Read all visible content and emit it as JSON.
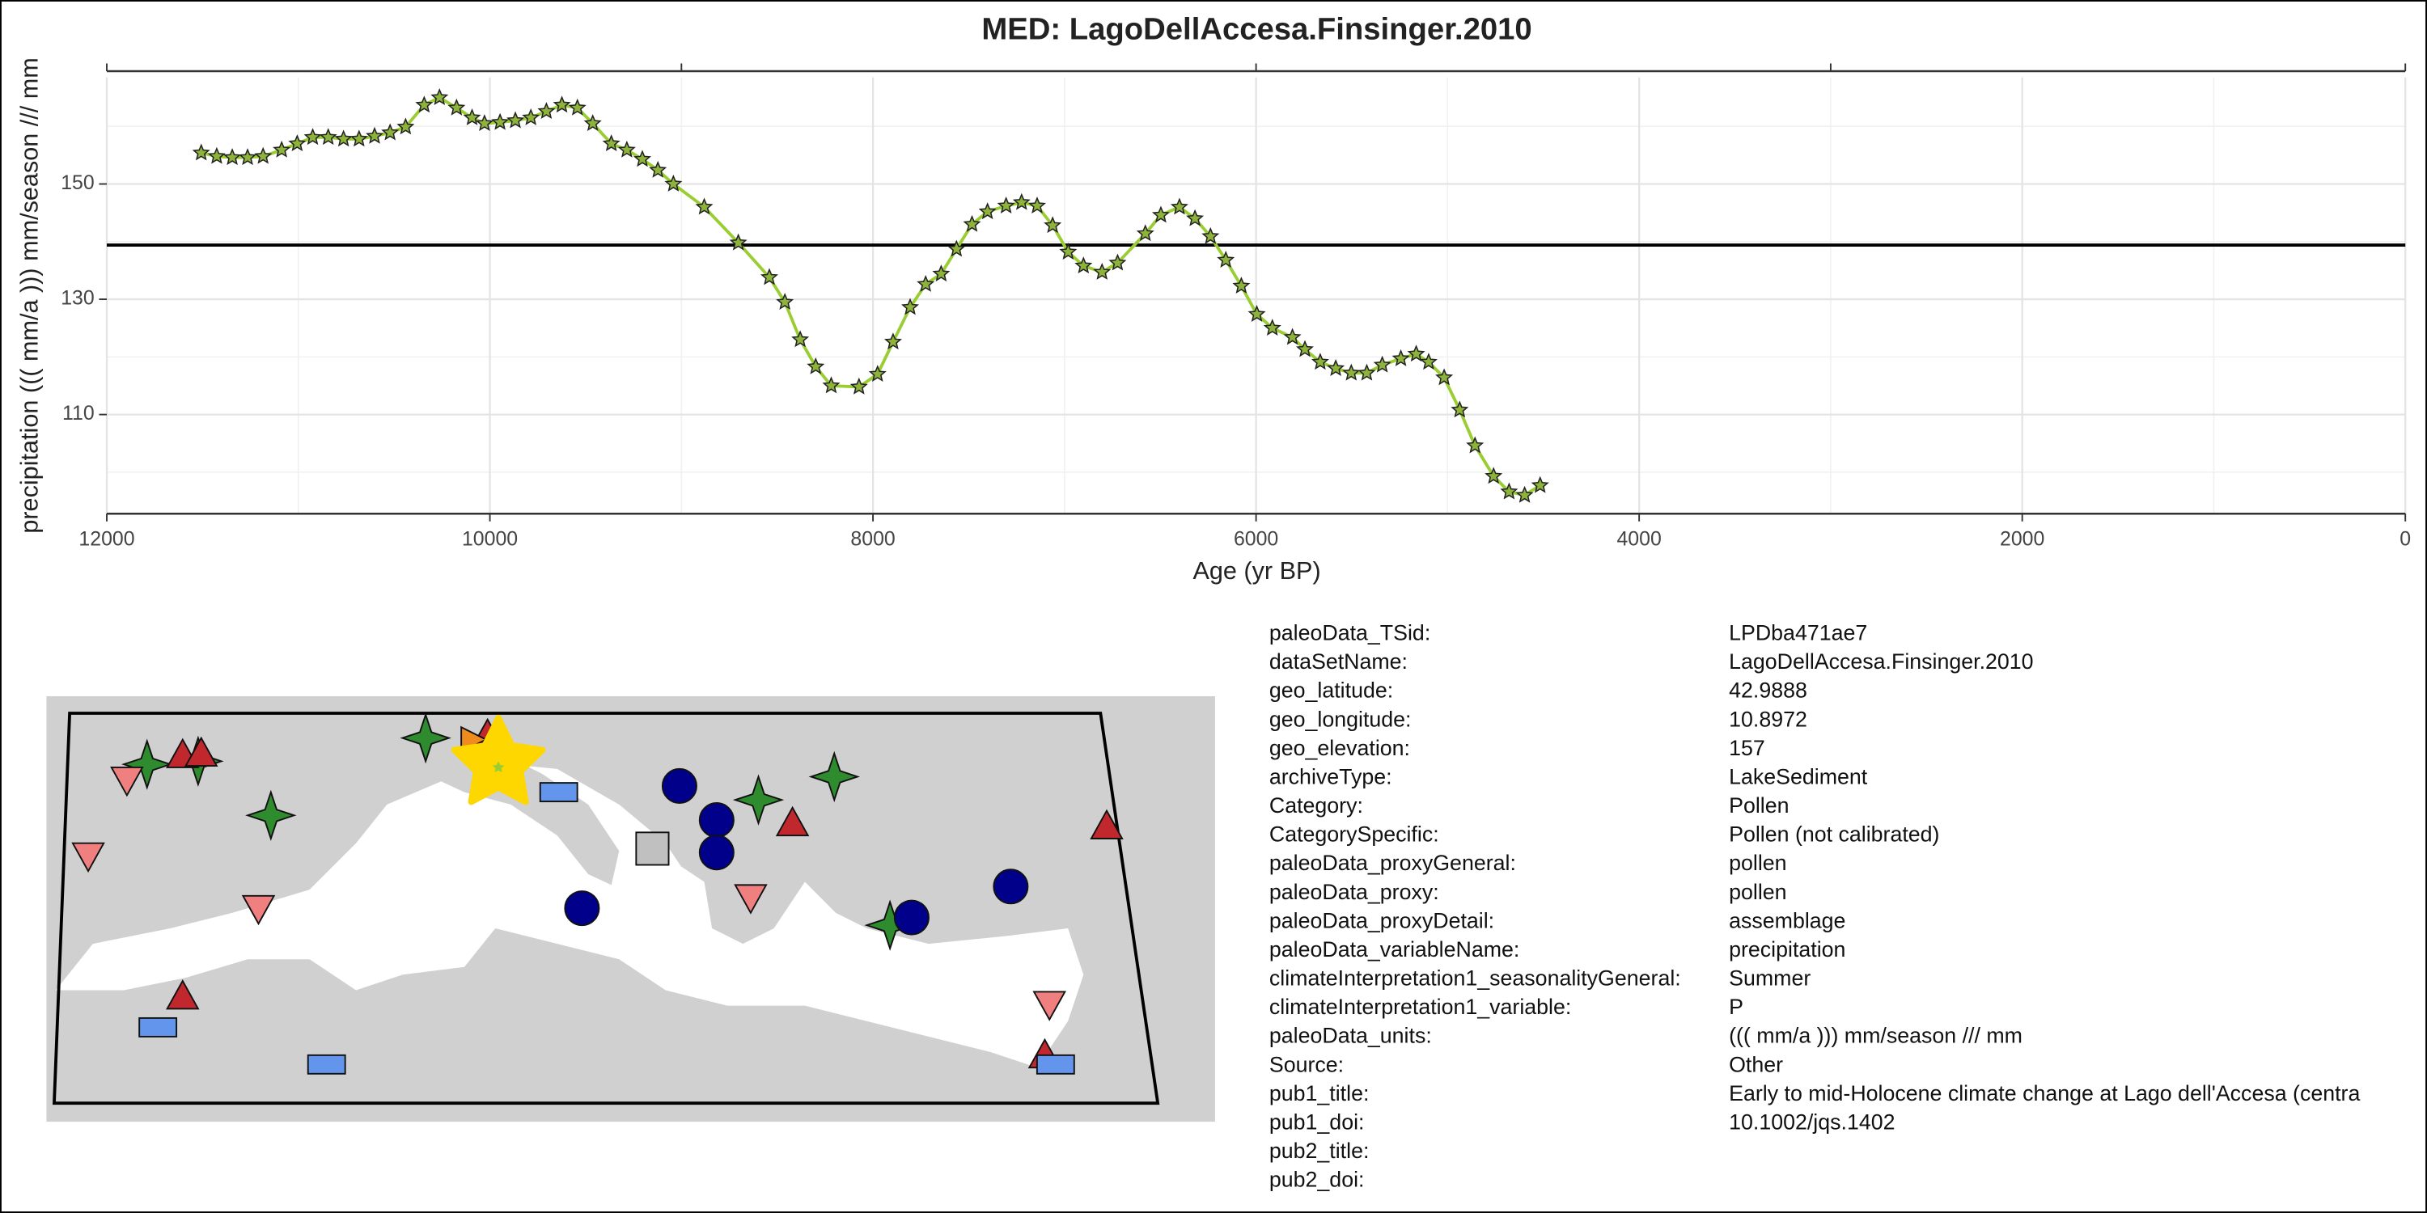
{
  "chart_data": {
    "type": "line",
    "title": "MED: LagoDellAccesa.Finsinger.2010",
    "x_label": "Age (yr BP)",
    "y_label": "precipitation ((( mm/a ))) mm/season /// mm",
    "x": [
      11507,
      11426,
      11345,
      11265,
      11184,
      11087,
      11006,
      10925,
      10844,
      10764,
      10683,
      10602,
      10521,
      10440,
      10343,
      10263,
      10174,
      10093,
      10028,
      9947,
      9867,
      9786,
      9705,
      9624,
      9543,
      9463,
      9366,
      9285,
      9204,
      9123,
      9042,
      8881,
      8703,
      8541,
      8460,
      8380,
      8299,
      8218,
      8073,
      7976,
      7895,
      7806,
      7725,
      7644,
      7564,
      7483,
      7402,
      7305,
      7224,
      7143,
      7062,
      6981,
      6901,
      6804,
      6723,
      6578,
      6497,
      6400,
      6319,
      6238,
      6158,
      6077,
      5996,
      5915,
      5810,
      5745,
      5665,
      5584,
      5503,
      5422,
      5341,
      5244,
      5164,
      5099,
      5018,
      4937,
      4857,
      4760,
      4679,
      4598,
      4517
    ],
    "values": [
      155.4,
      154.8,
      154.6,
      154.6,
      154.8,
      155.9,
      157,
      158.1,
      158.1,
      157.8,
      157.8,
      158.3,
      158.9,
      159.9,
      163.7,
      165,
      163.2,
      161.5,
      160.5,
      160.7,
      161,
      161.5,
      162.6,
      163.7,
      163.2,
      160.5,
      157,
      155.9,
      154.3,
      152.4,
      150,
      146,
      139.8,
      133.8,
      129.5,
      123,
      118.3,
      115,
      114.8,
      117,
      122.6,
      128.6,
      132.6,
      134.4,
      138.7,
      143,
      145.2,
      146.2,
      146.8,
      146.2,
      142.8,
      138.2,
      135.8,
      134.7,
      136.3,
      141.4,
      144.6,
      146,
      144,
      140.9,
      136.8,
      132.3,
      127.4,
      125,
      123.4,
      121.3,
      119.1,
      118,
      117.2,
      117.2,
      118.6,
      119.7,
      120.5,
      119.1,
      116.4,
      110.8,
      104.6,
      99.3,
      96.6,
      96,
      97.7
    ],
    "line_color": "#9acd32",
    "marker_color": "#8db33a",
    "hline": 139.4,
    "xlim": [
      12000,
      0
    ],
    "xticks": [
      12000,
      10000,
      8000,
      6000,
      4000,
      2000,
      0
    ],
    "ylim": [
      92.8,
      168.5
    ],
    "yticks": [
      110,
      130,
      150
    ],
    "grid": true
  },
  "metadata": {
    "rows": [
      [
        "paleoData_TSid:",
        "LPDba471ae7"
      ],
      [
        "dataSetName:",
        "LagoDellAccesa.Finsinger.2010"
      ],
      [
        "geo_latitude:",
        "42.9888"
      ],
      [
        "geo_longitude:",
        "10.8972"
      ],
      [
        "geo_elevation:",
        "157"
      ],
      [
        "archiveType:",
        "LakeSediment"
      ],
      [
        "Category:",
        "Pollen"
      ],
      [
        "CategorySpecific:",
        "Pollen (not calibrated)"
      ],
      [
        "paleoData_proxyGeneral:",
        "pollen"
      ],
      [
        "paleoData_proxy:",
        "pollen"
      ],
      [
        "paleoData_proxyDetail:",
        "assemblage"
      ],
      [
        "paleoData_variableName:",
        "precipitation"
      ],
      [
        "climateInterpretation1_seasonalityGeneral:",
        "Summer"
      ],
      [
        "climateInterpretation1_variable:",
        "P"
      ],
      [
        "paleoData_units:",
        "((( mm/a ))) mm/season /// mm"
      ],
      [
        "Source:",
        "Other"
      ],
      [
        "pub1_title:",
        "Early to mid-Holocene climate change at Lago dell'Accesa (centra"
      ],
      [
        "pub1_doi:",
        "10.1002/jqs.1402"
      ],
      [
        "pub2_title:"
      ],
      [
        "pub2_doi:"
      ]
    ]
  }
}
